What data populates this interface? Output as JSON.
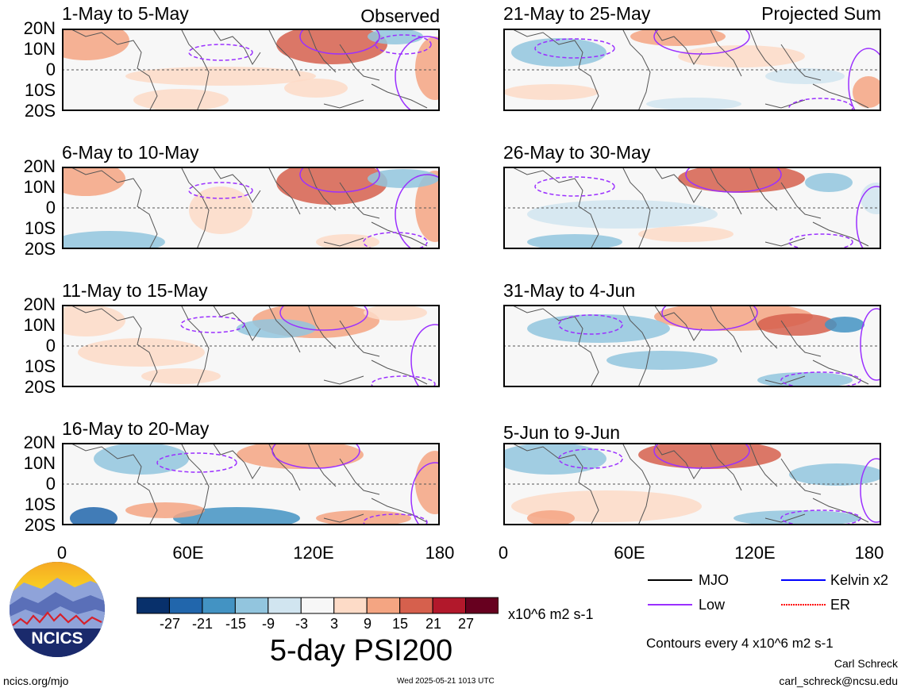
{
  "panels": [
    {
      "title": "1-May to 5-May",
      "tag": "Observed"
    },
    {
      "title": "21-May to 25-May",
      "tag": "Projected Sum"
    },
    {
      "title": "6-May to 10-May",
      "tag": ""
    },
    {
      "title": "26-May to 30-May",
      "tag": ""
    },
    {
      "title": "11-May to 15-May",
      "tag": ""
    },
    {
      "title": "31-May to 4-Jun",
      "tag": ""
    },
    {
      "title": "16-May to 20-May",
      "tag": ""
    },
    {
      "title": "5-Jun to 9-Jun",
      "tag": ""
    }
  ],
  "lat_labels": [
    "20N",
    "10N",
    "0",
    "10S",
    "20S"
  ],
  "lon_labels": [
    "0",
    "60E",
    "120E",
    "180"
  ],
  "colorbar": {
    "colors": [
      "#08306b",
      "#2166ac",
      "#4393c3",
      "#92c5de",
      "#d1e5f0",
      "#f7f7f7",
      "#fddbc7",
      "#f4a582",
      "#d6604d",
      "#b2182b",
      "#67001f"
    ],
    "labels": [
      "-27",
      "-21",
      "-15",
      "-9",
      "-3",
      "3",
      "9",
      "15",
      "21",
      "27"
    ],
    "units": "x10^6 m2 s-1",
    "title": "5-day PSI200"
  },
  "legend": {
    "items": [
      {
        "label": "MJO",
        "color": "#000000"
      },
      {
        "label": "Kelvin x2",
        "color": "#0000ff"
      },
      {
        "label": "Low",
        "color": "#9b30ff"
      },
      {
        "label": "ER",
        "color": "#ff0000"
      }
    ],
    "contour_note": "Contours every 4 x10^6 m2 s-1"
  },
  "logo": {
    "text": "NCICS"
  },
  "footer": {
    "left": "ncics.org/mjo",
    "center": "Wed 2025-05-21 1013 UTC",
    "author": "Carl Schreck",
    "email": "carl_schreck@ncsu.edu"
  }
}
